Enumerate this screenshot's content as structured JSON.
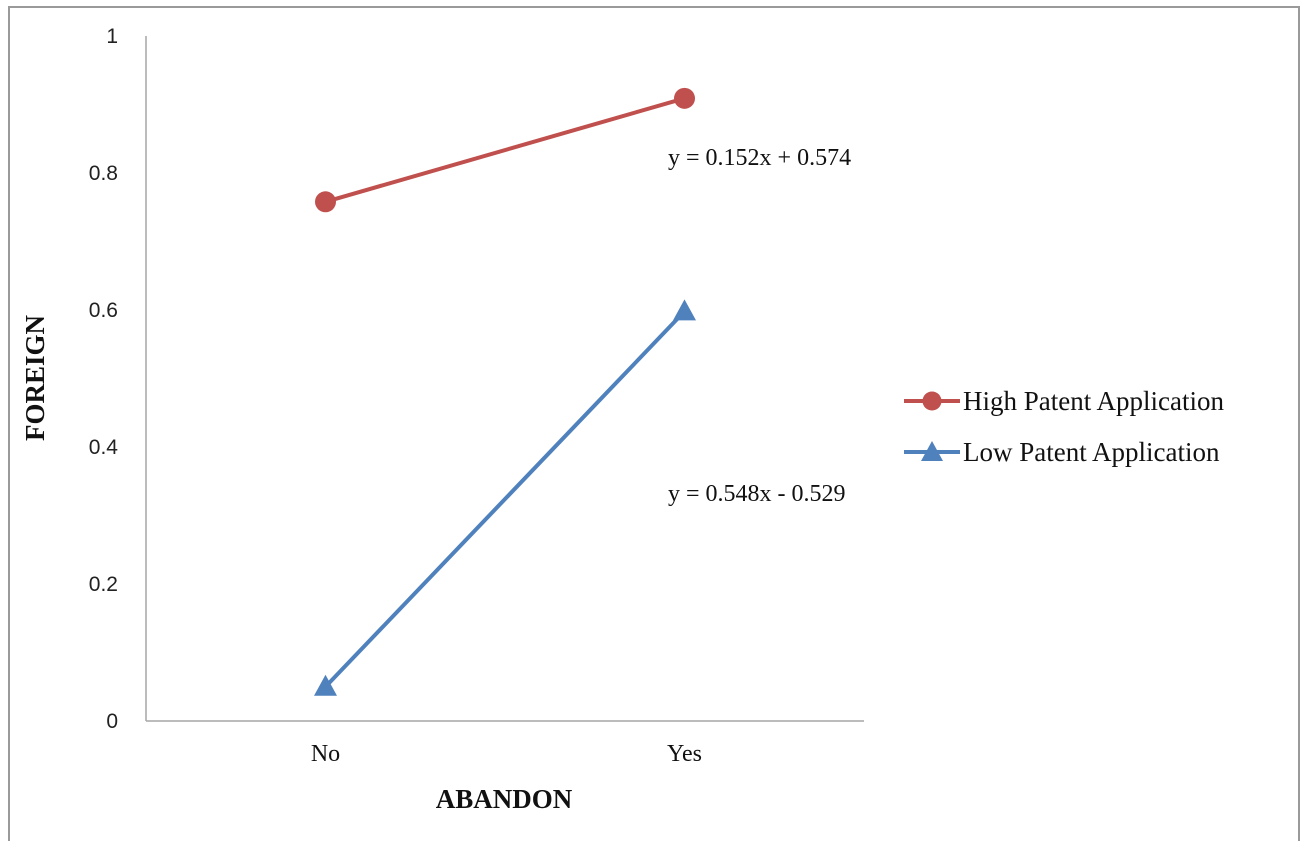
{
  "chart_data": {
    "type": "line",
    "categories": [
      "No",
      "Yes"
    ],
    "xlabel": "ABANDON",
    "ylabel": "FOREIGN",
    "ylim": [
      0,
      1
    ],
    "yticks": [
      "0",
      "0.2",
      "0.4",
      "0.6",
      "0.8",
      "1"
    ],
    "grid": false,
    "legend_position": "right",
    "series": [
      {
        "name": "High Patent Application",
        "values": [
          0.758,
          0.909
        ],
        "color": "#C0504D",
        "marker": "circle",
        "equation": "y = 0.152x + 0.574"
      },
      {
        "name": "Low Patent Application",
        "values": [
          0.05,
          0.598
        ],
        "color": "#4F81BD",
        "marker": "triangle",
        "equation": "y = 0.548x - 0.529"
      }
    ]
  }
}
